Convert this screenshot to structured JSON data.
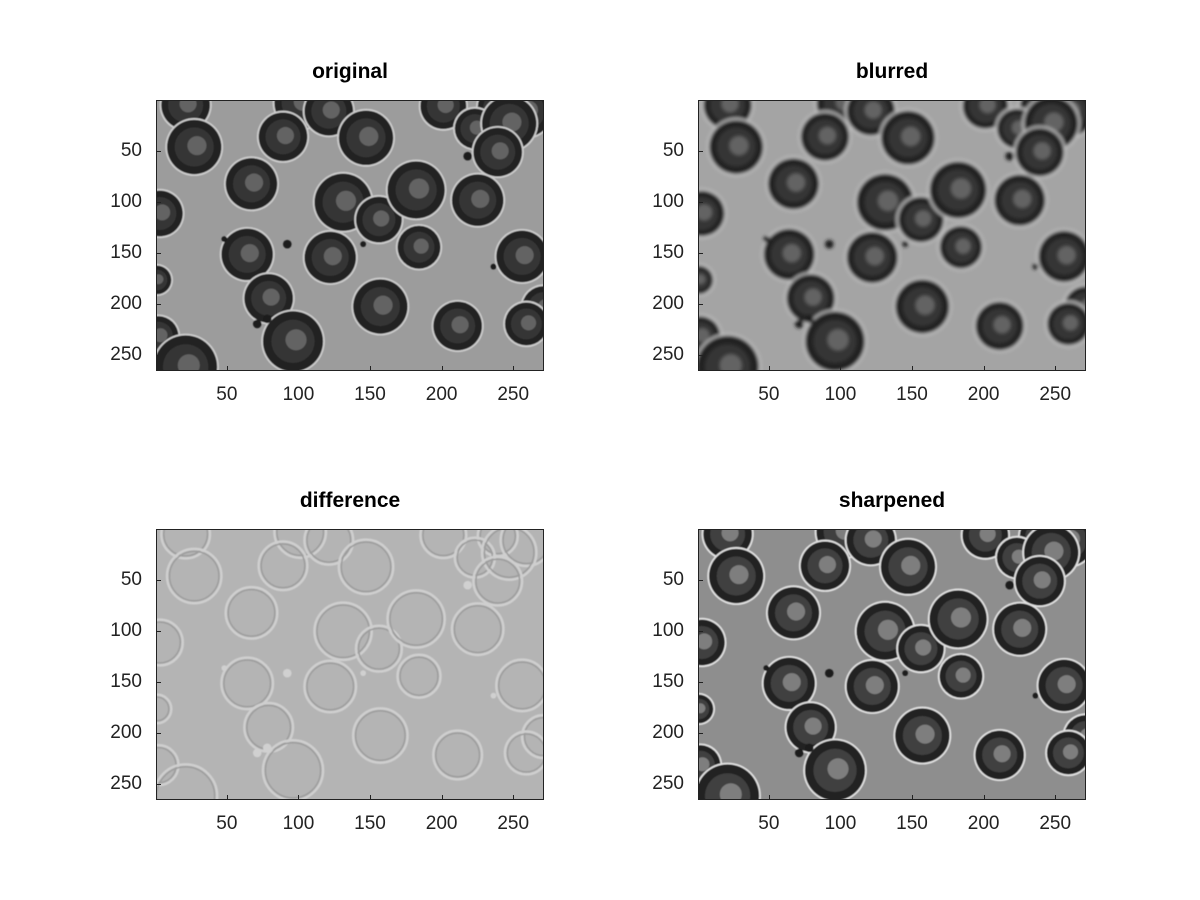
{
  "figure": {
    "panels": [
      {
        "id": "original",
        "title": "original",
        "style": "original"
      },
      {
        "id": "blurred",
        "title": "blurred",
        "style": "blurred"
      },
      {
        "id": "difference",
        "title": "difference",
        "style": "difference"
      },
      {
        "id": "sharpened",
        "title": "sharpened",
        "style": "sharpened"
      }
    ],
    "x_ticks": [
      "50",
      "100",
      "150",
      "200",
      "250"
    ],
    "y_ticks": [
      "50",
      "100",
      "150",
      "200",
      "250"
    ],
    "x_tick_values": [
      50,
      100,
      150,
      200,
      250
    ],
    "y_tick_values": [
      50,
      100,
      150,
      200,
      250
    ],
    "x_range": [
      0.5,
      271.5
    ],
    "y_range": [
      0.5,
      265.5
    ],
    "image_description": "grayscale microscope image of red blood cells",
    "colors": {
      "background": "#ffffff",
      "axis": "#222222",
      "original_bg": "#9a9a9a",
      "difference_bg": "#b4b4b4",
      "sharpened_bg": "#8e8e8e"
    }
  }
}
